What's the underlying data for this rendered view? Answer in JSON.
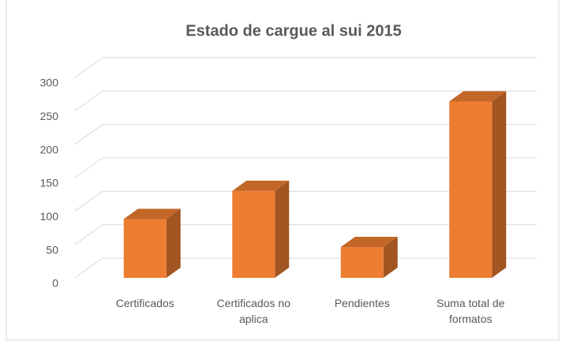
{
  "chart_data": {
    "type": "bar3d",
    "title": "Estado de cargue al sui 2015",
    "categories": [
      "Certificados",
      "Certificados no aplica",
      "Pendientes",
      "Suma total de formatos"
    ],
    "values": [
      88,
      130,
      46,
      264
    ],
    "color": "#ED7D31",
    "ylim": [
      0,
      300
    ],
    "yticks": [
      0,
      50,
      100,
      150,
      200,
      250,
      300
    ],
    "grid": true
  }
}
